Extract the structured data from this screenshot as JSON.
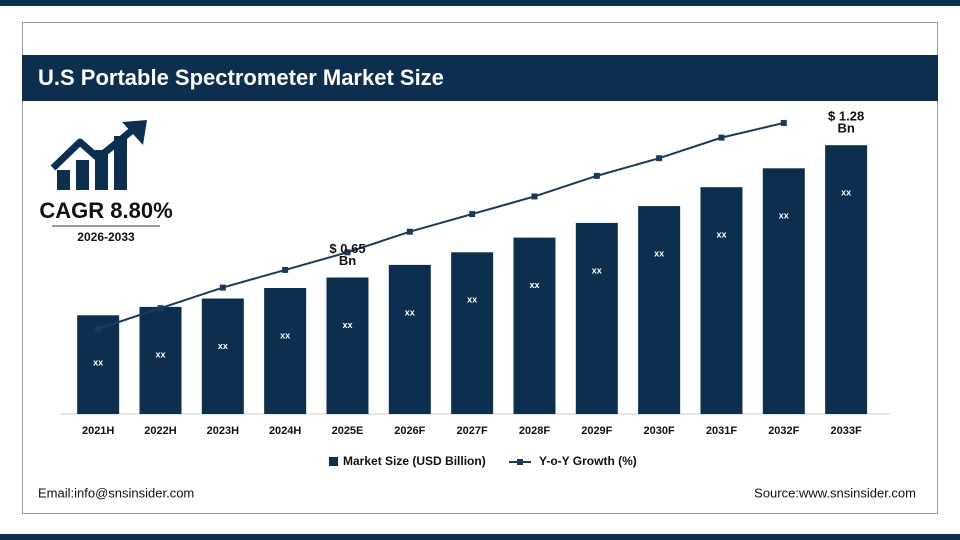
{
  "chart_data": {
    "type": "bar",
    "title": "U.S Portable Spectrometer Market Size",
    "categories": [
      "2021H",
      "2022H",
      "2023H",
      "2024H",
      "2025E",
      "2026F",
      "2027F",
      "2028F",
      "2029F",
      "2030F",
      "2031F",
      "2032F",
      "2033F"
    ],
    "series": [
      {
        "name": "Market Size (USD Billion)",
        "color": "#0d2f4f",
        "values": [
          0.47,
          0.51,
          0.55,
          0.6,
          0.65,
          0.71,
          0.77,
          0.84,
          0.91,
          0.99,
          1.08,
          1.17,
          1.28
        ],
        "value_labels": [
          "xx",
          "xx",
          "xx",
          "xx",
          "xx",
          "xx",
          "xx",
          "xx",
          "xx",
          "xx",
          "xx",
          "xx",
          "xx"
        ]
      },
      {
        "name": "Y-o-Y Growth (%)",
        "color": "#1a3a5c",
        "axis": "y2",
        "type": "line",
        "values": [
          2.9,
          3.6,
          4.3,
          4.9,
          5.5,
          6.2,
          6.8,
          7.4,
          8.1,
          8.7,
          9.4,
          9.9,
          null
        ]
      }
    ],
    "ylim": [
      0,
      1.4
    ],
    "y2lim": [
      0,
      10
    ],
    "annotations": [
      {
        "category": "2025E",
        "lines": [
          "$ 0.65",
          "Bn"
        ]
      },
      {
        "category": "2033F",
        "lines": [
          "$ 1.28",
          "Bn"
        ]
      }
    ]
  },
  "cagr": {
    "label": "CAGR 8.80%",
    "period": "2026-2033"
  },
  "footer": {
    "email": "Email:info@snsinsider.com",
    "source": "Source:www.snsinsider.com"
  }
}
